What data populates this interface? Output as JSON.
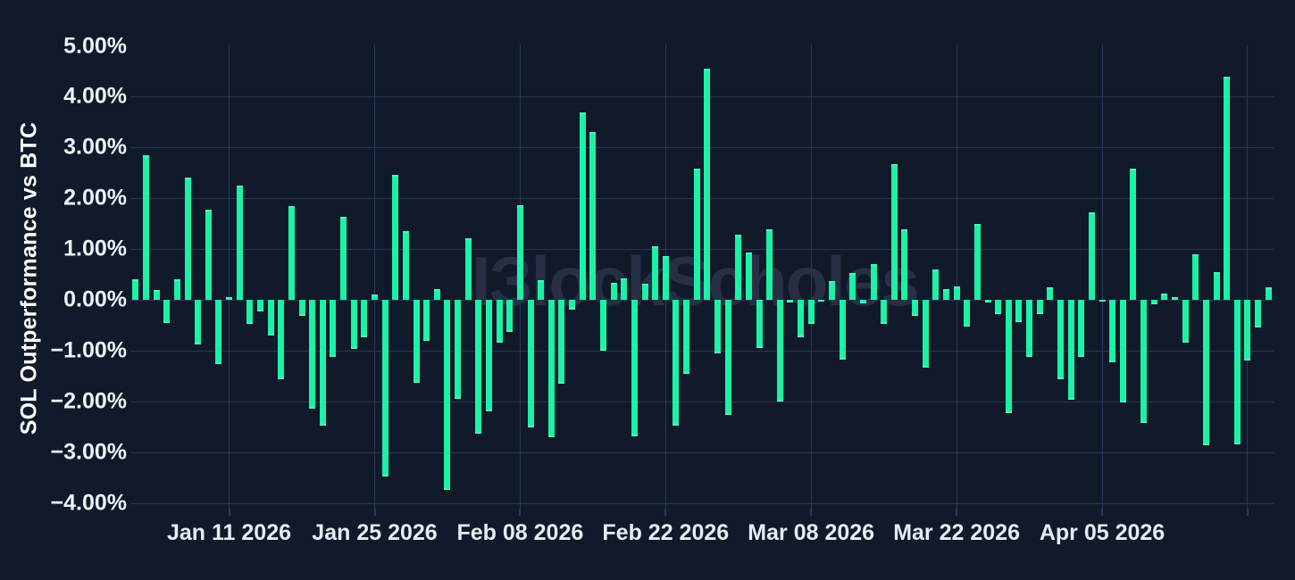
{
  "watermark": {
    "brand": "BlockScholes",
    "display": "ƖЗlockScholes"
  },
  "colors": {
    "background": "#111a2b",
    "bar": "#1bf2a5",
    "gridline": "#283554",
    "tick_text": "#eef1f6",
    "axis_title_text": "#ffffff",
    "watermark_text": "#272f45"
  },
  "chart_data": {
    "type": "bar",
    "title": "",
    "xlabel": "",
    "ylabel": "SOL Outperformance vs BTC",
    "ylim": [
      -4.1,
      5.05
    ],
    "grid": true,
    "legend": false,
    "y_tick_format": "percent_2dp",
    "x_start_date": "2026-01-02",
    "x_end_date": "2026-04-21",
    "x": [
      "2026-01-02",
      "2026-01-03",
      "2026-01-04",
      "2026-01-05",
      "2026-01-06",
      "2026-01-07",
      "2026-01-08",
      "2026-01-09",
      "2026-01-10",
      "2026-01-11",
      "2026-01-12",
      "2026-01-13",
      "2026-01-14",
      "2026-01-15",
      "2026-01-16",
      "2026-01-17",
      "2026-01-18",
      "2026-01-19",
      "2026-01-20",
      "2026-01-21",
      "2026-01-22",
      "2026-01-23",
      "2026-01-24",
      "2026-01-25",
      "2026-01-26",
      "2026-01-27",
      "2026-01-28",
      "2026-01-29",
      "2026-01-30",
      "2026-01-31",
      "2026-02-01",
      "2026-02-02",
      "2026-02-03",
      "2026-02-04",
      "2026-02-05",
      "2026-02-06",
      "2026-02-07",
      "2026-02-08",
      "2026-02-09",
      "2026-02-10",
      "2026-02-11",
      "2026-02-12",
      "2026-02-13",
      "2026-02-14",
      "2026-02-15",
      "2026-02-16",
      "2026-02-17",
      "2026-02-18",
      "2026-02-19",
      "2026-02-20",
      "2026-02-21",
      "2026-02-22",
      "2026-02-23",
      "2026-02-24",
      "2026-02-25",
      "2026-02-26",
      "2026-02-27",
      "2026-02-28",
      "2026-03-01",
      "2026-03-02",
      "2026-03-03",
      "2026-03-04",
      "2026-03-05",
      "2026-03-06",
      "2026-03-07",
      "2026-03-08",
      "2026-03-09",
      "2026-03-10",
      "2026-03-11",
      "2026-03-12",
      "2026-03-13",
      "2026-03-14",
      "2026-03-15",
      "2026-03-16",
      "2026-03-17",
      "2026-03-18",
      "2026-03-19",
      "2026-03-20",
      "2026-03-21",
      "2026-03-22",
      "2026-03-23",
      "2026-03-24",
      "2026-03-25",
      "2026-03-26",
      "2026-03-27",
      "2026-03-28",
      "2026-03-29",
      "2026-03-30",
      "2026-03-31",
      "2026-04-01",
      "2026-04-02",
      "2026-04-03",
      "2026-04-04",
      "2026-04-05",
      "2026-04-06",
      "2026-04-07",
      "2026-04-08",
      "2026-04-09",
      "2026-04-10",
      "2026-04-11",
      "2026-04-12",
      "2026-04-13",
      "2026-04-14",
      "2026-04-15",
      "2026-04-16",
      "2026-04-17",
      "2026-04-18",
      "2026-04-19",
      "2026-04-20",
      "2026-04-21"
    ],
    "values": [
      0.41,
      2.84,
      0.2,
      -0.45,
      0.41,
      2.4,
      -0.87,
      1.78,
      -1.26,
      0.05,
      2.25,
      -0.48,
      -0.22,
      -0.71,
      -1.56,
      1.85,
      -0.31,
      -2.15,
      -2.48,
      -1.13,
      1.63,
      -0.97,
      -0.73,
      0.11,
      -3.48,
      2.46,
      1.36,
      -1.63,
      -0.81,
      0.21,
      -3.75,
      -1.95,
      1.21,
      -2.63,
      -2.2,
      -0.84,
      -0.64,
      1.86,
      -2.52,
      0.39,
      -2.71,
      -1.65,
      -0.19,
      3.7,
      3.31,
      -1.0,
      0.34,
      0.42,
      -2.68,
      0.32,
      1.05,
      0.87,
      -2.48,
      -1.46,
      2.58,
      4.55,
      -1.05,
      -2.27,
      1.29,
      0.94,
      -0.95,
      1.39,
      -2.0,
      -0.05,
      -0.74,
      -0.48,
      -0.04,
      0.37,
      -1.17,
      0.52,
      -0.07,
      0.71,
      -0.48,
      2.67,
      1.39,
      -0.32,
      -1.34,
      0.6,
      0.22,
      0.26,
      -0.52,
      1.49,
      -0.05,
      -0.28,
      -2.23,
      -0.44,
      -1.13,
      -0.28,
      0.24,
      -1.57,
      -1.96,
      -1.12,
      1.72,
      -0.04,
      -1.23,
      -2.02,
      2.58,
      -2.43,
      -0.09,
      0.12,
      0.05,
      -0.84,
      0.9,
      -2.87,
      0.54,
      4.39,
      -2.84,
      -1.2,
      -0.54,
      0.24
    ],
    "y_ticks": [
      {
        "value": 5,
        "label": "5.00%"
      },
      {
        "value": 4,
        "label": "4.00%"
      },
      {
        "value": 3,
        "label": "3.00%"
      },
      {
        "value": 2,
        "label": "2.00%"
      },
      {
        "value": 1,
        "label": "1.00%"
      },
      {
        "value": 0,
        "label": "0.00%"
      },
      {
        "value": -1,
        "label": "−1.00%"
      },
      {
        "value": -2,
        "label": "−2.00%"
      },
      {
        "value": -3,
        "label": "−3.00%"
      },
      {
        "value": -4,
        "label": "−4.00%"
      }
    ],
    "gridline_values": [
      4,
      3,
      2,
      1,
      0,
      -1,
      -2,
      -3,
      -4
    ],
    "x_ticks": [
      {
        "index": 9,
        "label": "Jan 11 2026"
      },
      {
        "index": 23,
        "label": "Jan 25 2026"
      },
      {
        "index": 37,
        "label": "Feb 08 2026"
      },
      {
        "index": 51,
        "label": "Feb 22 2026"
      },
      {
        "index": 65,
        "label": "Mar 08 2026"
      },
      {
        "index": 79,
        "label": "Mar 22 2026"
      },
      {
        "index": 93,
        "label": "Apr 05 2026"
      },
      {
        "index": 107,
        "label": ""
      }
    ]
  }
}
